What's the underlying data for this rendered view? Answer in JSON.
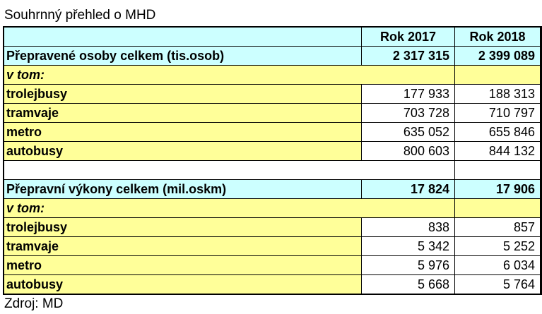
{
  "title": "Souhrnný přehled o MHD",
  "source": "Zdroj: MD",
  "columns": [
    "",
    "Rok 2017",
    "Rok 2018"
  ],
  "section1": {
    "total_label": "Přepravené osoby celkem (tis.osob)",
    "total_2017": "2 317 315",
    "total_2018": "2 399 089",
    "subheader": "v tom:",
    "rows": [
      {
        "label": "trolejbusy",
        "v2017": "177 933",
        "v2018": "188 313"
      },
      {
        "label": "tramvaje",
        "v2017": "703 728",
        "v2018": "710 797"
      },
      {
        "label": "metro",
        "v2017": "635 052",
        "v2018": "655 846"
      },
      {
        "label": "autobusy",
        "v2017": "800 603",
        "v2018": "844 132"
      }
    ]
  },
  "section2": {
    "total_label": "Přepravní výkony celkem (mil.oskm)",
    "total_2017": "17 824",
    "total_2018": "17 906",
    "subheader": "v tom:",
    "rows": [
      {
        "label": "trolejbusy",
        "v2017": "838",
        "v2018": "857"
      },
      {
        "label": "tramvaje",
        "v2017": "5 342",
        "v2018": "5 252"
      },
      {
        "label": "metro",
        "v2017": "5 976",
        "v2018": "6 034"
      },
      {
        "label": "autobusy",
        "v2017": "5 668",
        "v2018": "5 764"
      }
    ]
  },
  "colors": {
    "header_cyan": "#ccffff",
    "label_yellow": "#ffff99",
    "cell_white": "#ffffff"
  }
}
